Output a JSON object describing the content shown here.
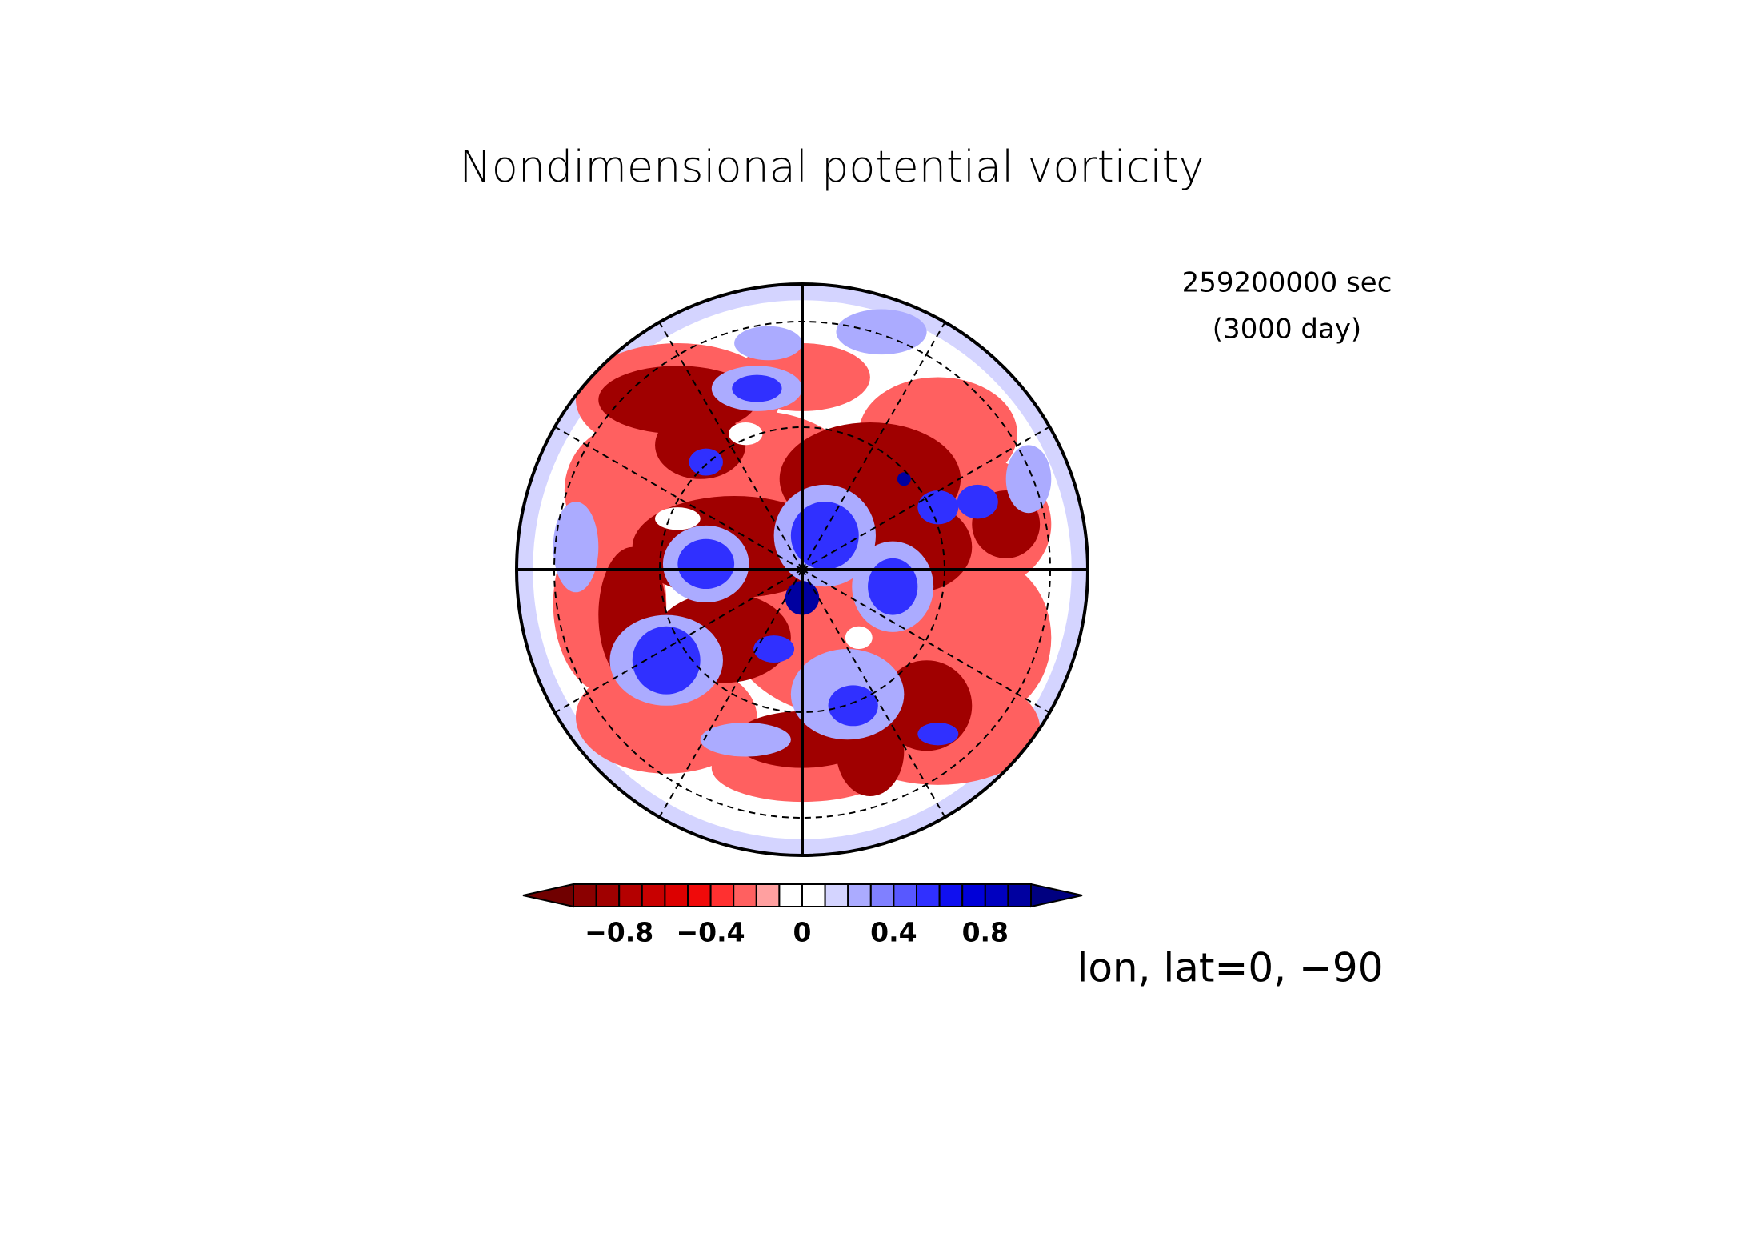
{
  "chart_data": {
    "type": "polar-contour",
    "title": "Nondimensional potential vorticity",
    "time_label": "259200000 sec",
    "day_label": "(3000 day)",
    "map_label": "lon, lat=0, −90",
    "clim": [
      -1,
      1
    ],
    "cticks": [
      {
        "value": -0.8,
        "label": "−0.8"
      },
      {
        "value": -0.4,
        "label": "−0.4"
      },
      0,
      0.4,
      0.8
    ],
    "colors": [
      "#700000",
      "#8b0000",
      "#a00000",
      "#b40000",
      "#c80000",
      "#dc0000",
      "#f00a0a",
      "#ff3030",
      "#ff6060",
      "#ffa0a0",
      "#ffffff",
      "#ffffff",
      "#d4d4ff",
      "#ababff",
      "#8080ff",
      "#5858ff",
      "#3030ff",
      "#1010f0",
      "#0000d8",
      "#0000c0",
      "#0000a0",
      "#000080"
    ]
  }
}
